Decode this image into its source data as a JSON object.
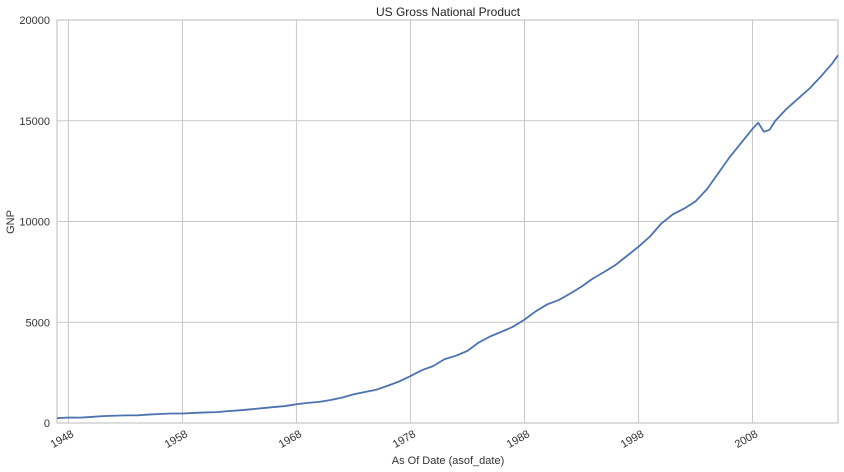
{
  "chart_data": {
    "type": "line",
    "title": "US Gross National Product",
    "xlabel": "As Of Date (asof_date)",
    "ylabel": "GNP",
    "xlim": [
      "1947-01-01",
      "2015-07-01"
    ],
    "ylim": [
      0,
      20000
    ],
    "grid": true,
    "x_ticks": [
      "1948",
      "1958",
      "1968",
      "1978",
      "1988",
      "1998",
      "2008"
    ],
    "y_ticks": [
      "0",
      "5000",
      "10000",
      "15000",
      "20000"
    ],
    "colors": {
      "line": "#4c72b0",
      "grid": "#c8c8c8",
      "frame": "#bbbbbb"
    },
    "series": [
      {
        "x": [
          "1947-01-01",
          "1948-01-01",
          "1949-01-01",
          "1950-01-01",
          "1951-01-01",
          "1952-01-01",
          "1953-01-01",
          "1954-01-01",
          "1955-01-01",
          "1956-01-01",
          "1957-01-01",
          "1958-01-01",
          "1959-01-01",
          "1960-01-01",
          "1961-01-01",
          "1962-01-01",
          "1963-01-01",
          "1964-01-01",
          "1965-01-01",
          "1966-01-01",
          "1967-01-01",
          "1968-01-01",
          "1969-01-01",
          "1970-01-01",
          "1971-01-01",
          "1972-01-01",
          "1973-01-01",
          "1974-01-01",
          "1975-01-01",
          "1976-01-01",
          "1977-01-01",
          "1978-01-01",
          "1979-01-01",
          "1980-01-01",
          "1981-01-01",
          "1982-01-01",
          "1983-01-01",
          "1984-01-01",
          "1985-01-01",
          "1986-01-01",
          "1987-01-01",
          "1988-01-01",
          "1989-01-01",
          "1990-01-01",
          "1991-01-01",
          "1992-01-01",
          "1993-01-01",
          "1994-01-01",
          "1995-01-01",
          "1996-01-01",
          "1997-01-01",
          "1998-01-01",
          "1999-01-01",
          "2000-01-01",
          "2001-01-01",
          "2002-01-01",
          "2003-01-01",
          "2004-01-01",
          "2005-01-01",
          "2006-01-01",
          "2007-01-01",
          "2008-01-01",
          "2008-07-01",
          "2009-01-01",
          "2009-07-01",
          "2010-01-01",
          "2011-01-01",
          "2012-01-01",
          "2013-01-01",
          "2014-01-01",
          "2015-01-01",
          "2015-07-01"
        ],
        "values": [
          240,
          270,
          265,
          300,
          340,
          360,
          380,
          380,
          420,
          445,
          470,
          470,
          500,
          525,
          540,
          590,
          630,
          680,
          735,
          790,
          840,
          930,
          1000,
          1050,
          1140,
          1260,
          1420,
          1540,
          1650,
          1850,
          2060,
          2330,
          2620,
          2830,
          3170,
          3340,
          3580,
          4000,
          4300,
          4530,
          4780,
          5130,
          5550,
          5890,
          6100,
          6420,
          6770,
          7170,
          7500,
          7850,
          8300,
          8750,
          9250,
          9900,
          10350,
          10640,
          11000,
          11600,
          12400,
          13200,
          13900,
          14600,
          14900,
          14450,
          14550,
          15000,
          15600,
          16100,
          16600,
          17200,
          17850,
          18250
        ]
      }
    ]
  }
}
